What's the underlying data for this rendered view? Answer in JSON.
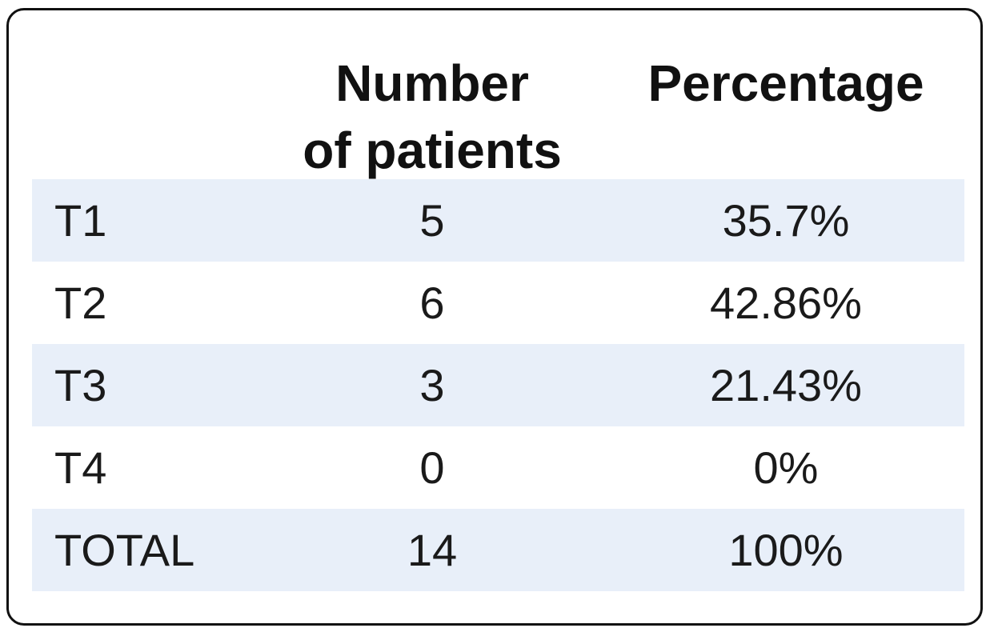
{
  "table": {
    "headers": {
      "number_line1": "Number",
      "number_line2": "of patients",
      "percentage": "Percentage"
    },
    "rows": [
      {
        "label": "T1",
        "number": "5",
        "percentage": "35.7%"
      },
      {
        "label": "T2",
        "number": "6",
        "percentage": "42.86%"
      },
      {
        "label": "T3",
        "number": "3",
        "percentage": "21.43%"
      },
      {
        "label": "T4",
        "number": "0",
        "percentage": "0%"
      },
      {
        "label": "TOTAL",
        "number": "14",
        "percentage": "100%"
      }
    ]
  },
  "colors": {
    "row_shade": "#e8eff9",
    "border": "#111111",
    "text": "#1a1a1a"
  }
}
